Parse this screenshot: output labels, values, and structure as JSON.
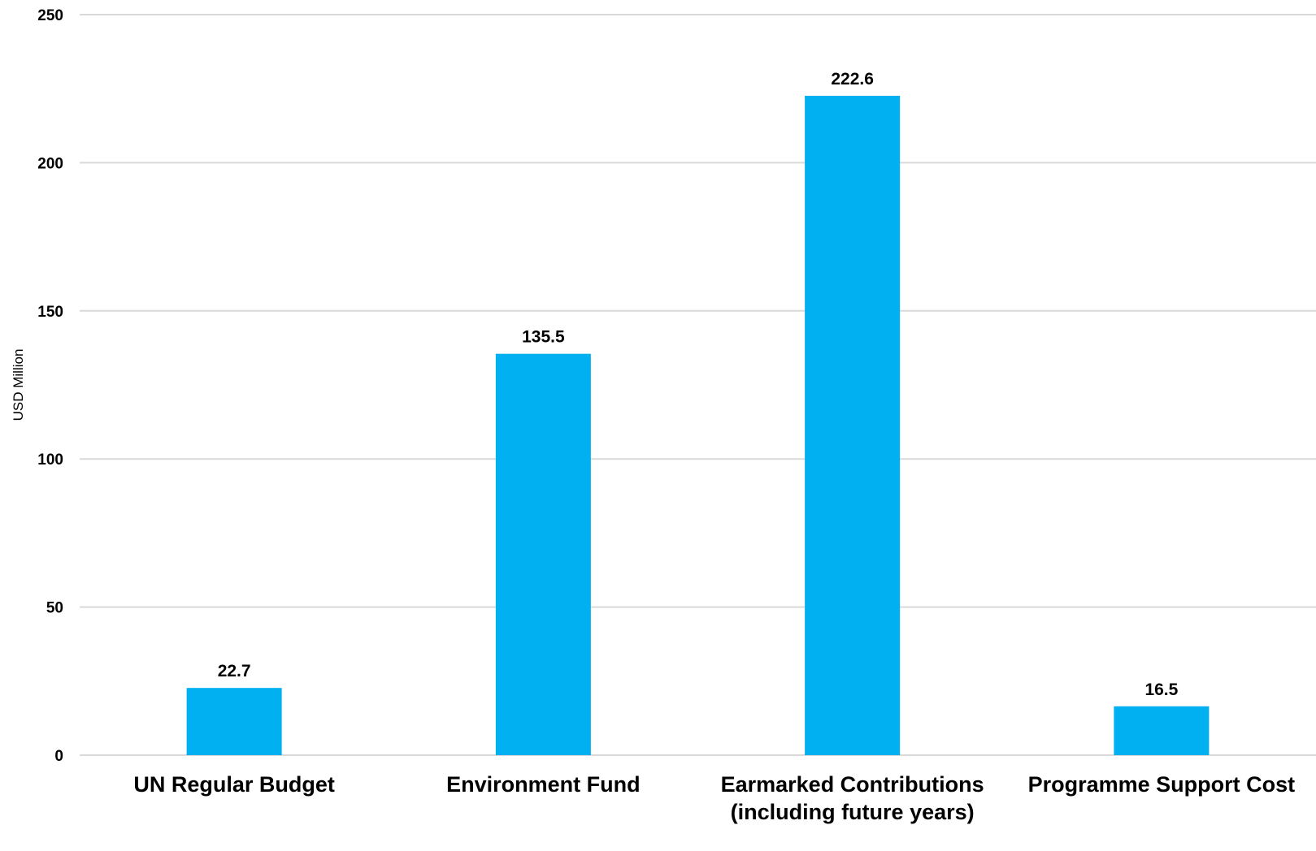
{
  "chart_data": {
    "type": "bar",
    "categories": [
      [
        "UN Regular Budget"
      ],
      [
        "Environment Fund"
      ],
      [
        "Earmarked Contributions",
        "(including future years)"
      ],
      [
        "Programme Support Cost"
      ]
    ],
    "values": [
      22.7,
      135.5,
      222.6,
      16.5
    ],
    "value_labels": [
      "22.7",
      "135.5",
      "222.6",
      "16.5"
    ],
    "title": "",
    "xlabel": "",
    "ylabel": "USD Million",
    "ylim": [
      0,
      250
    ],
    "yticks": [
      0,
      50,
      100,
      150,
      200,
      250
    ],
    "grid": true,
    "legend": "none",
    "colors": {
      "bar": "#00b0f0",
      "grid": "#d9d9d9",
      "text": "#000000"
    }
  }
}
